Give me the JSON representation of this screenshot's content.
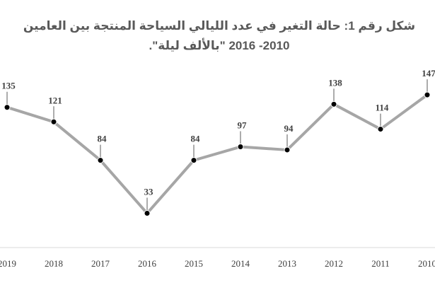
{
  "chart_data": {
    "type": "line",
    "title_lines": [
      "شكل رقم 1: حالة التغير في عدد الليالي السياحة المنتجة بين العامين",
      "2010- 2016 \"بالألف ليلة\"."
    ],
    "categories": [
      "2019",
      "2018",
      "2017",
      "2016",
      "2015",
      "2014",
      "2013",
      "2012",
      "2011",
      "2010"
    ],
    "values": [
      135,
      121,
      84,
      33,
      84,
      97,
      94,
      138,
      114,
      147
    ],
    "color": "#a6a6a6",
    "ylim": [
      0,
      160
    ]
  }
}
